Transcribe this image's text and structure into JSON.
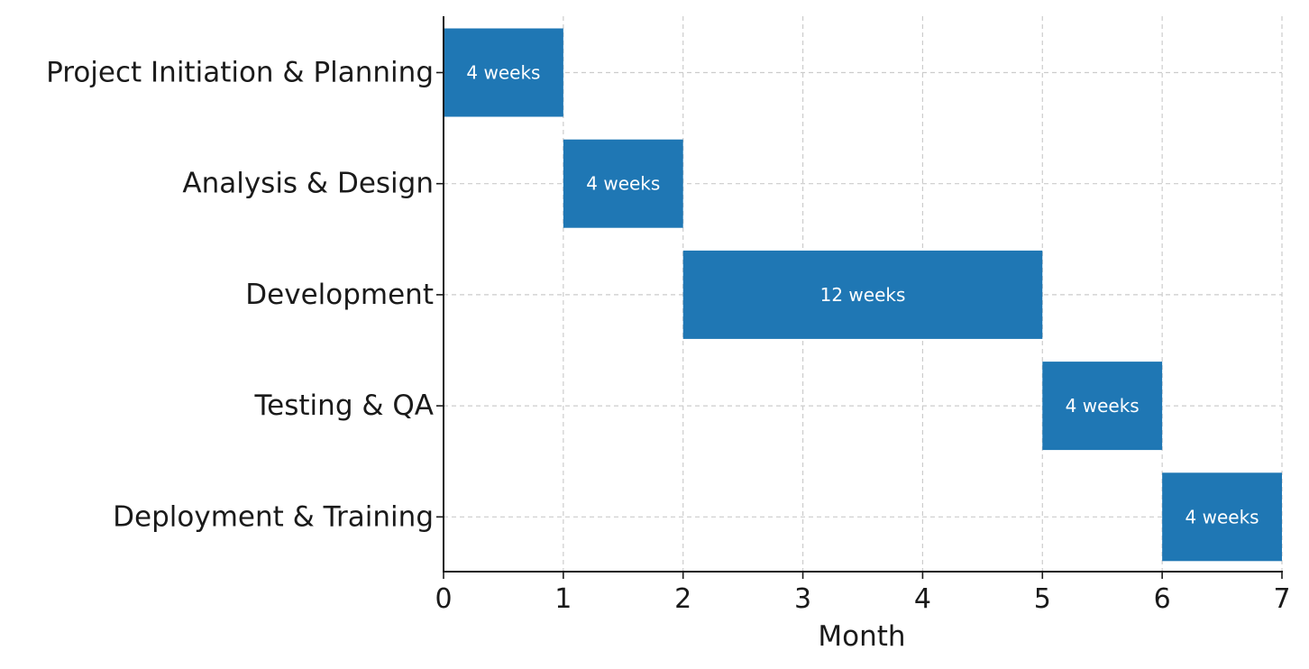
{
  "chart_data": {
    "type": "bar",
    "orientation": "horizontal",
    "title": "",
    "xlabel": "Month",
    "ylabel": "",
    "xlim": [
      0,
      7
    ],
    "x_ticks": [
      "0",
      "1",
      "2",
      "3",
      "4",
      "5",
      "6",
      "7"
    ],
    "grid": true,
    "bar_color": "#1f77b4",
    "tasks": [
      {
        "name": "Project Initiation & Planning",
        "start": 0,
        "end": 1,
        "label": "4 weeks"
      },
      {
        "name": "Analysis & Design",
        "start": 1,
        "end": 2,
        "label": "4 weeks"
      },
      {
        "name": "Development",
        "start": 2,
        "end": 5,
        "label": "12 weeks"
      },
      {
        "name": "Testing & QA",
        "start": 5,
        "end": 6,
        "label": "4 weeks"
      },
      {
        "name": "Deployment & Training",
        "start": 6,
        "end": 7,
        "label": "4 weeks"
      }
    ]
  }
}
